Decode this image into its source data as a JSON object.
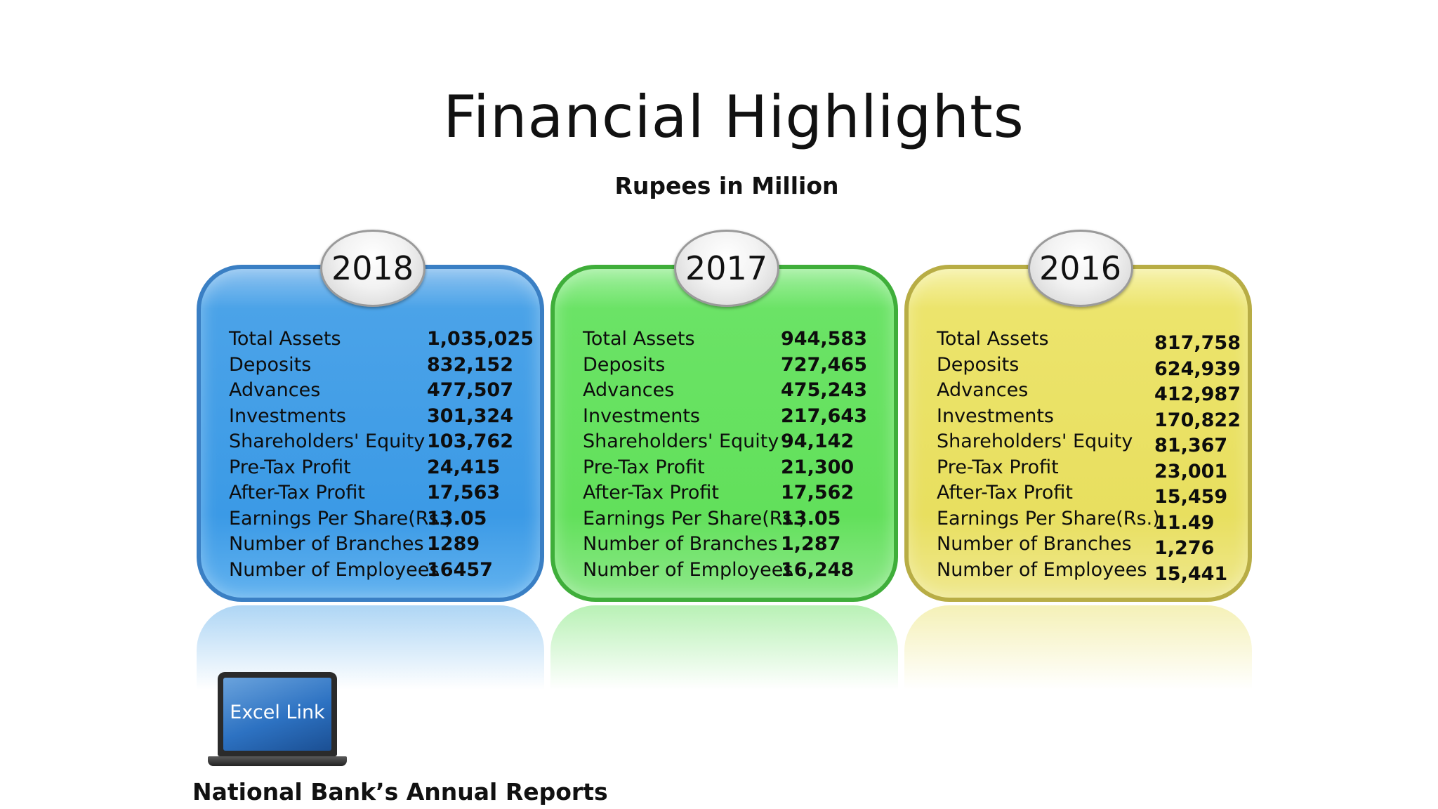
{
  "title": "Financial Highlights",
  "subtitle": "Rupees in Million",
  "years": [
    {
      "year": "2018",
      "color": "#3b9ae6",
      "rows": [
        {
          "label": "Total Assets",
          "value": "1,035,025"
        },
        {
          "label": "Deposits",
          "value": "832,152"
        },
        {
          "label": "Advances",
          "value": "477,507"
        },
        {
          "label": "Investments",
          "value": "301,324"
        },
        {
          "label": "Shareholders' Equity",
          "value": "103,762"
        },
        {
          "label": "Pre-Tax Profit",
          "value": "24,415"
        },
        {
          "label": "After-Tax Profit",
          "value": "17,563"
        },
        {
          "label": "Earnings Per Share(Rs.)",
          "value": "13.05"
        },
        {
          "label": "Number of Branches",
          "value": "1289"
        },
        {
          "label": "Number of Employees",
          "value": "16457"
        }
      ]
    },
    {
      "year": "2017",
      "color": "#62e05b",
      "rows": [
        {
          "label": "Total Assets",
          "value": "944,583"
        },
        {
          "label": "Deposits",
          "value": "727,465"
        },
        {
          "label": "Advances",
          "value": "475,243"
        },
        {
          "label": "Investments",
          "value": "217,643"
        },
        {
          "label": "Shareholders' Equity",
          "value": "94,142"
        },
        {
          "label": "Pre-Tax Profit",
          "value": "21,300"
        },
        {
          "label": "After-Tax Profit",
          "value": "17,562"
        },
        {
          "label": "Earnings Per Share(Rs.)",
          "value": "13.05"
        },
        {
          "label": "Number of Branches",
          "value": "1,287"
        },
        {
          "label": "Number of Employees",
          "value": "16,248"
        }
      ]
    },
    {
      "year": "2016",
      "color": "#e8df5f",
      "rows": [
        {
          "label": "Total Assets",
          "value": "817,758"
        },
        {
          "label": "Deposits",
          "value": "624,939"
        },
        {
          "label": "Advances",
          "value": "412,987"
        },
        {
          "label": "Investments",
          "value": "170,822"
        },
        {
          "label": "Shareholders' Equity",
          "value": "81,367"
        },
        {
          "label": "Pre-Tax Profit",
          "value": "23,001"
        },
        {
          "label": "After-Tax Profit",
          "value": "15,459"
        },
        {
          "label": "Earnings Per Share(Rs.)",
          "value": "11.49"
        },
        {
          "label": "Number of Branches",
          "value": "1,276"
        },
        {
          "label": "Number of Employees",
          "value": "15,441"
        }
      ]
    }
  ],
  "excel_link": {
    "label": "Excel Link",
    "icon": "laptop-icon"
  },
  "footer": "National Bank’s Annual Reports"
}
